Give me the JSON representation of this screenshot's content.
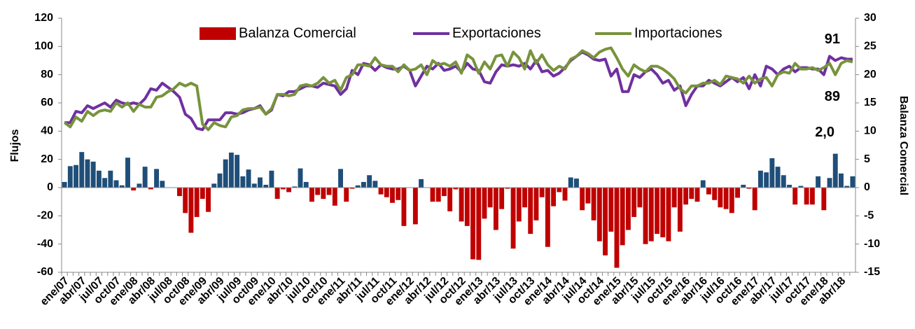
{
  "chart_data": {
    "type": "bar-line",
    "y_label": "Flujos",
    "y2_label": "Balanza Comercial",
    "categories": [
      "ene/07",
      null,
      null,
      "abr/07",
      null,
      null,
      "jul/07",
      null,
      null,
      "oct/07",
      null,
      null,
      "ene/08",
      null,
      null,
      "abr/08",
      null,
      null,
      "jul/08",
      null,
      null,
      "oct/08",
      null,
      null,
      "ene/09",
      null,
      null,
      "abr/09",
      null,
      null,
      "jul/09",
      null,
      null,
      "oct/09",
      null,
      null,
      "ene/10",
      null,
      null,
      "abr/10",
      null,
      null,
      "jul/10",
      null,
      null,
      "oct/10",
      null,
      null,
      "ene/11",
      null,
      null,
      "abr/11",
      null,
      null,
      "jul/11",
      null,
      null,
      "oct/11",
      null,
      null,
      "ene/12",
      null,
      null,
      "abr/12",
      null,
      null,
      "jul/12",
      null,
      null,
      "oct/12",
      null,
      null,
      "ene/13",
      null,
      null,
      "abr/13",
      null,
      null,
      "jul/13",
      null,
      null,
      "oct/13",
      null,
      null,
      "ene/14",
      null,
      null,
      "abr/14",
      null,
      null,
      "jul/14",
      null,
      null,
      "oct/14",
      null,
      null,
      "ene/15",
      null,
      null,
      "abr/15",
      null,
      null,
      "jul/15",
      null,
      null,
      "oct/15",
      null,
      null,
      "ene/16",
      null,
      null,
      "abr/16",
      null,
      null,
      "jul/16",
      null,
      null,
      "oct/16",
      null,
      null,
      "ene/17",
      null,
      null,
      "abr/17",
      null,
      null,
      "jul/17",
      null,
      null,
      "oct/17",
      null,
      null,
      "ene/18",
      null,
      null,
      "abr/18",
      null,
      null
    ],
    "series": [
      {
        "name": "Balanza Comercial",
        "type": "bar",
        "axis": "y2",
        "color": "#1f4e79",
        "negative_color": "#c00000",
        "values": [
          1,
          3.8,
          4,
          6.3,
          5,
          4.6,
          3,
          1.7,
          3,
          1.3,
          0.4,
          5.3,
          -0.5,
          0.7,
          3.7,
          -0.3,
          3.3,
          1.2,
          0,
          0,
          -1.5,
          -4.5,
          -8,
          -5.2,
          -2,
          -4.3,
          0.7,
          2.5,
          5,
          6.2,
          5.8,
          2,
          3.2,
          0.7,
          1.8,
          0.5,
          3,
          -2,
          -0.3,
          -0.8,
          0.2,
          3.4,
          1,
          -2.5,
          -1.3,
          -2,
          -1.3,
          -3.2,
          3.3,
          -2.5,
          -0.2,
          0.4,
          1,
          2.2,
          1.2,
          -1.2,
          -1.7,
          -2.7,
          -2.2,
          -6.8,
          0,
          -6.5,
          1.5,
          0,
          -2.5,
          -2.5,
          -1.5,
          -4.2,
          -0.3,
          -6,
          -6.8,
          -12.7,
          -12.8,
          -5.5,
          -3.5,
          -7.5,
          -3.8,
          -0.2,
          -10.8,
          -6,
          -3.5,
          -8.2,
          -5.8,
          -1.7,
          -10.5,
          -3.3,
          -0.8,
          -2.3,
          1.8,
          1.6,
          -4,
          -2.8,
          -5.8,
          -9.5,
          -12,
          -7.8,
          -14.2,
          -10.2,
          -7.5,
          -5.2,
          -3.5,
          -10,
          -9.5,
          -8.2,
          -8.8,
          -9.5,
          -3.5,
          -7.8,
          -3,
          -2,
          -2.5,
          1.3,
          -1.2,
          -2.2,
          -3.5,
          -3.8,
          -4.5,
          -1.8,
          0.5,
          -0.2,
          -4,
          3,
          2.7,
          5.2,
          3.7,
          2.2,
          0.5,
          -3,
          0.3,
          -3,
          -3,
          2,
          -4,
          1.7,
          6,
          2.5,
          0.3,
          2
        ]
      },
      {
        "name": "Exportaciones",
        "type": "line",
        "color": "#7030a0",
        "values": [
          46,
          46,
          54,
          53,
          58,
          56,
          58,
          60,
          57,
          62,
          60,
          59,
          60,
          59,
          63,
          70,
          69,
          74,
          71,
          68,
          64,
          52,
          49,
          42,
          41,
          48,
          48,
          48,
          53,
          53,
          52,
          53,
          55,
          56,
          58,
          52,
          55,
          66,
          65,
          68,
          68,
          70,
          72,
          72,
          71,
          74,
          73,
          72,
          66,
          70,
          83,
          80,
          88,
          87,
          83,
          87,
          85,
          84,
          84,
          86,
          83,
          72,
          79,
          86,
          84,
          88,
          83,
          84,
          86,
          82,
          88,
          84,
          83,
          75,
          74,
          82,
          87,
          86,
          87,
          86,
          88,
          84,
          90,
          82,
          83,
          79,
          81,
          85,
          90,
          93,
          96,
          94,
          91,
          90,
          91,
          79,
          84,
          68,
          68,
          80,
          78,
          82,
          84,
          80,
          74,
          76,
          69,
          72,
          58,
          66,
          72,
          72,
          76,
          74,
          72,
          75,
          78,
          75,
          78,
          70,
          80,
          72,
          86,
          84,
          80,
          84,
          86,
          82,
          85,
          85,
          84,
          84,
          80,
          93,
          90,
          92,
          91,
          91
        ]
      },
      {
        "name": "Importaciones",
        "type": "line",
        "color": "#77933c",
        "values": [
          46,
          43,
          50,
          47,
          54,
          51,
          54,
          55,
          54,
          60,
          57,
          60,
          54,
          59,
          57,
          57,
          64,
          65,
          68,
          70,
          74,
          72,
          74,
          72,
          45,
          41,
          46,
          44,
          43,
          50,
          51,
          55,
          56,
          56,
          57,
          52,
          56,
          66,
          66,
          65,
          66,
          72,
          73,
          72,
          74,
          78,
          74,
          76,
          69,
          78,
          80,
          87,
          87,
          86,
          92,
          87,
          86,
          86,
          82,
          87,
          83,
          84,
          87,
          80,
          90,
          87,
          88,
          86,
          89,
          81,
          94,
          91,
          81,
          89,
          84,
          93,
          94,
          86,
          96,
          92,
          84,
          97,
          88,
          94,
          87,
          83,
          86,
          84,
          91,
          93,
          97,
          95,
          92,
          96,
          98,
          99,
          92,
          84,
          79,
          87,
          84,
          82,
          86,
          86,
          84,
          81,
          77,
          70,
          67,
          72,
          72,
          74,
          74,
          76,
          73,
          79,
          78,
          77,
          74,
          79,
          74,
          77,
          78,
          72,
          80,
          82,
          81,
          88,
          84,
          84,
          85,
          83,
          85,
          88,
          80,
          88,
          90,
          89
        ]
      }
    ],
    "annotations": [
      {
        "text": "91",
        "color": "#7030a0"
      },
      {
        "text": "89",
        "color": "#77933c"
      },
      {
        "text": "2,0",
        "color": "#1f4e79"
      }
    ],
    "ylim": [
      -60,
      120
    ],
    "yticks": [
      -60,
      -40,
      -20,
      0,
      20,
      40,
      60,
      80,
      100,
      120
    ],
    "y2lim": [
      -15,
      30
    ],
    "y2ticks": [
      -15,
      -10,
      -5,
      0,
      5,
      10,
      15,
      20,
      25,
      30
    ],
    "legend": "top"
  }
}
